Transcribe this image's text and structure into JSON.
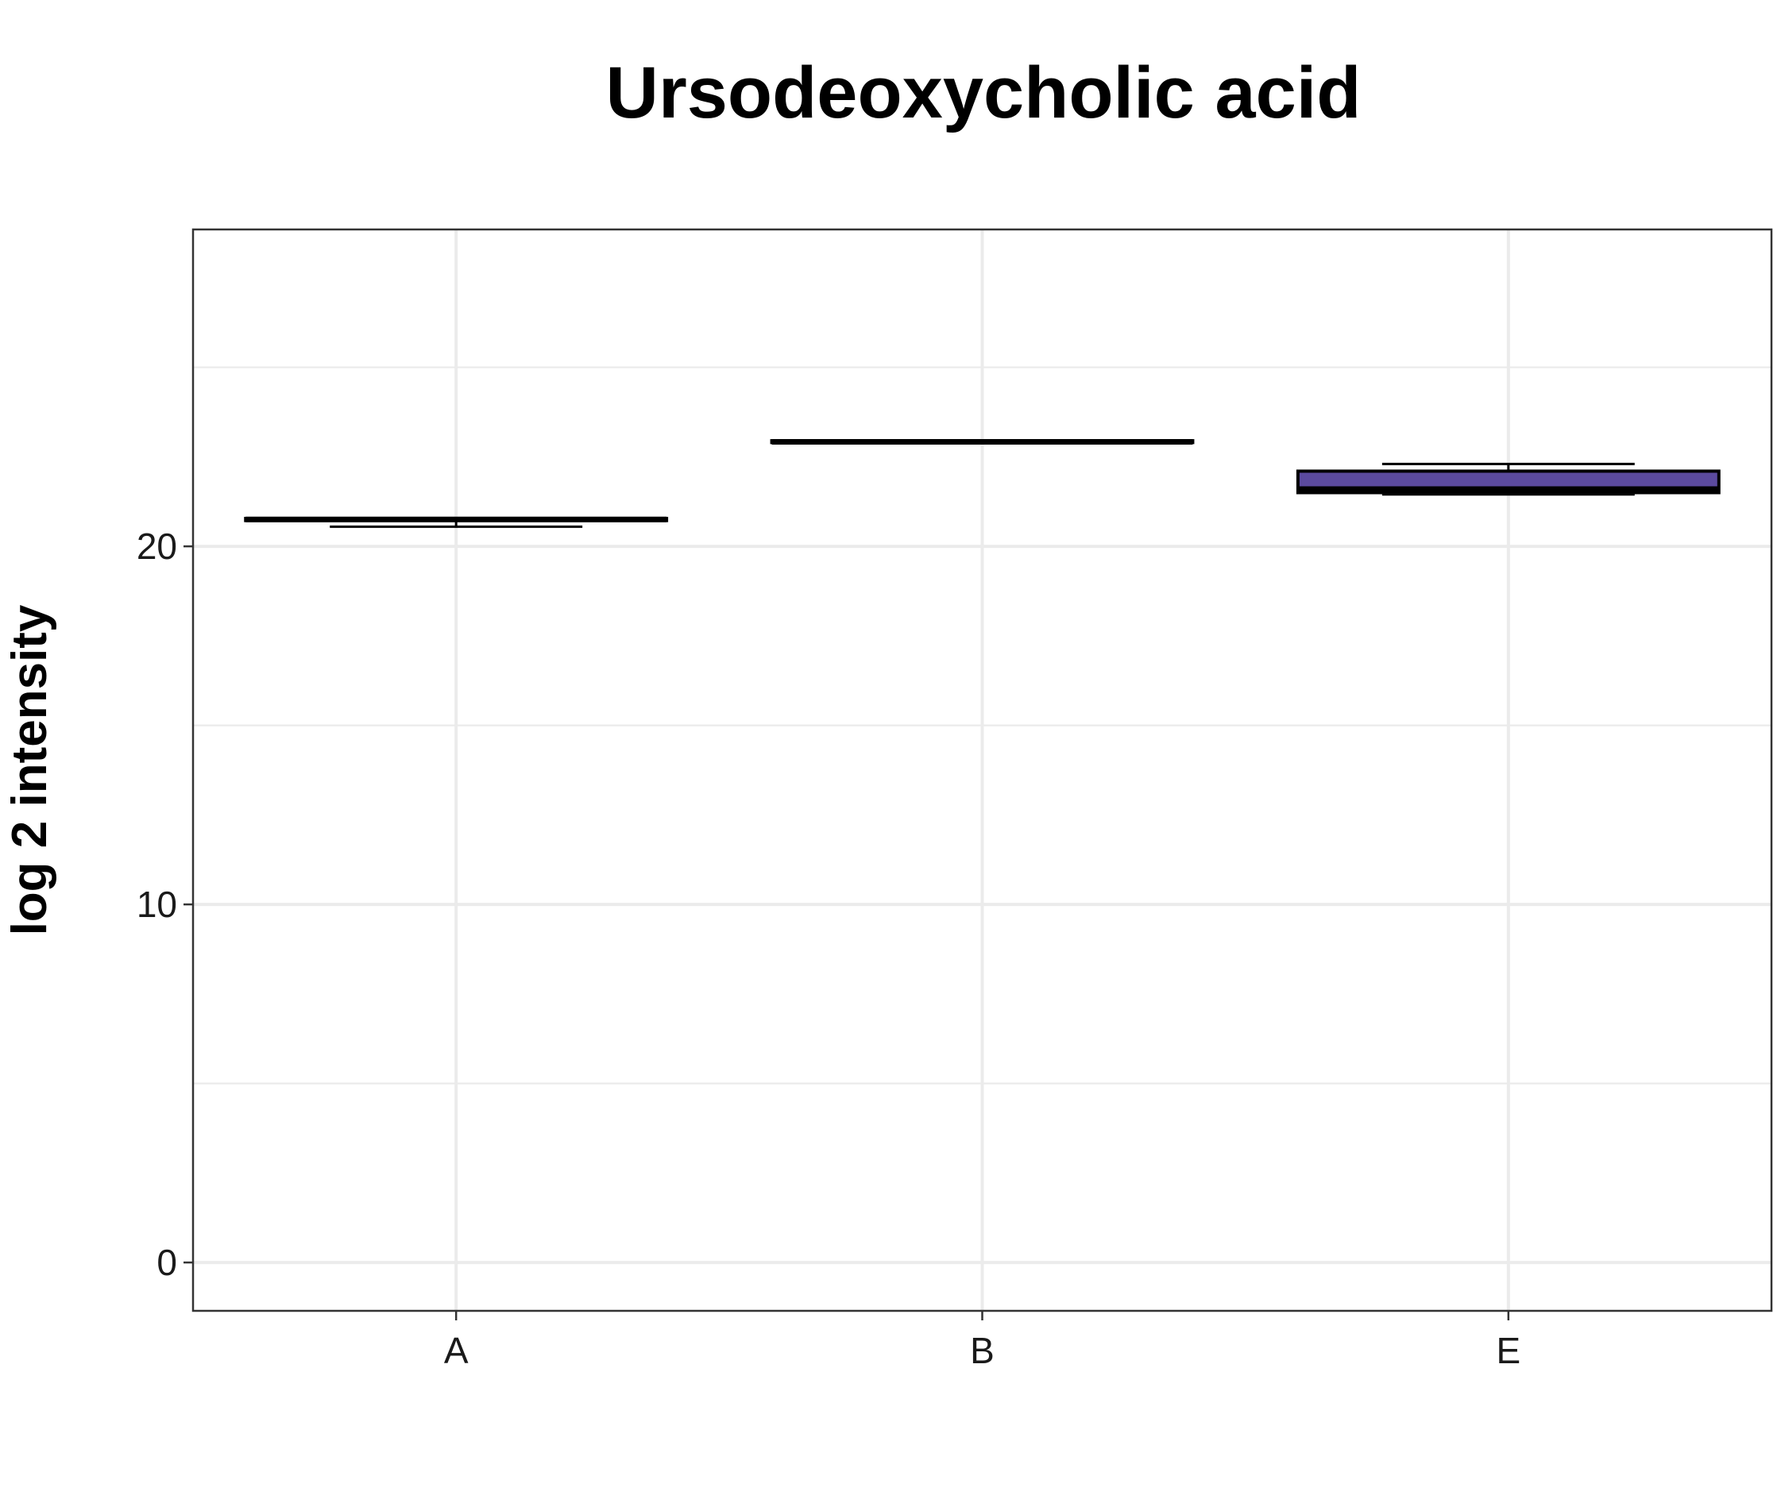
{
  "chart_data": {
    "type": "boxplot",
    "title": "Ursodeoxycholic acid",
    "xlabel": "",
    "ylabel": "log 2 intensity",
    "categories": [
      "A",
      "B",
      "E"
    ],
    "boxes": [
      {
        "category": "A",
        "min": 20.55,
        "q1": 20.72,
        "median": 20.75,
        "q3": 20.78,
        "max": 20.78,
        "fill": "#ffffff"
      },
      {
        "category": "B",
        "min": 22.9,
        "q1": 22.9,
        "median": 22.92,
        "q3": 22.95,
        "max": 22.95,
        "fill": "#ffffff"
      },
      {
        "category": "E",
        "min": 21.45,
        "q1": 21.5,
        "median": 21.6,
        "q3": 22.1,
        "max": 22.3,
        "fill": "#5b4a9e"
      }
    ],
    "ylim": [
      -1.35,
      28.85
    ],
    "yticks": [
      0,
      10,
      20
    ],
    "grid": true,
    "legend": "none",
    "colors": {
      "box_outline": "#000000",
      "grid": "#ebebeb",
      "panel_border": "#333333"
    }
  }
}
